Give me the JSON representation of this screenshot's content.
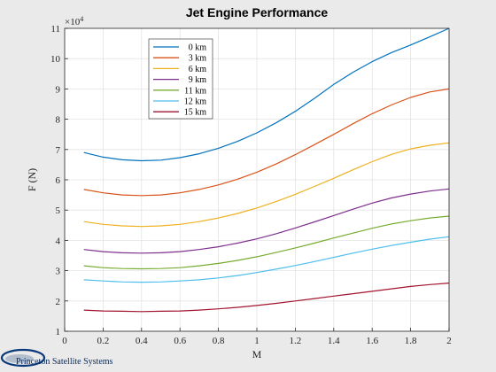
{
  "chart_data": {
    "type": "line",
    "title": "Jet Engine Performance",
    "xlabel": "M",
    "ylabel": "F (N)",
    "y_exponent_label": "×10",
    "y_exponent": "4",
    "xlim": [
      0,
      2
    ],
    "ylim": [
      1,
      11
    ],
    "x_ticks": [
      "0",
      "0.2",
      "0.4",
      "0.6",
      "0.8",
      "1",
      "1.2",
      "1.4",
      "1.6",
      "1.8",
      "2"
    ],
    "y_ticks": [
      "1",
      "2",
      "3",
      "4",
      "5",
      "6",
      "7",
      "8",
      "9",
      "10",
      "11"
    ],
    "grid": true,
    "legend_position": "top-left",
    "x": [
      0.1,
      0.2,
      0.3,
      0.4,
      0.5,
      0.6,
      0.7,
      0.8,
      0.9,
      1.0,
      1.1,
      1.2,
      1.3,
      1.4,
      1.5,
      1.6,
      1.7,
      1.8,
      1.9,
      2.0
    ],
    "series": [
      {
        "name": "0 km",
        "color": "#0072BD",
        "values": [
          6.9,
          6.75,
          6.66,
          6.63,
          6.65,
          6.73,
          6.86,
          7.04,
          7.27,
          7.55,
          7.88,
          8.26,
          8.69,
          9.15,
          9.55,
          9.9,
          10.2,
          10.45,
          10.72,
          11.0
        ]
      },
      {
        "name": "3 km",
        "color": "#D95319",
        "values": [
          5.68,
          5.57,
          5.5,
          5.48,
          5.5,
          5.57,
          5.68,
          5.83,
          6.02,
          6.25,
          6.52,
          6.83,
          7.16,
          7.5,
          7.85,
          8.18,
          8.47,
          8.72,
          8.9,
          9.0
        ]
      },
      {
        "name": "6 km",
        "color": "#EDB120",
        "values": [
          4.62,
          4.53,
          4.48,
          4.46,
          4.48,
          4.53,
          4.62,
          4.74,
          4.89,
          5.07,
          5.28,
          5.52,
          5.78,
          6.05,
          6.33,
          6.6,
          6.84,
          7.02,
          7.14,
          7.22
        ]
      },
      {
        "name": "9 km",
        "color": "#7E2F8E",
        "values": [
          3.7,
          3.63,
          3.59,
          3.58,
          3.59,
          3.63,
          3.7,
          3.79,
          3.91,
          4.05,
          4.22,
          4.41,
          4.61,
          4.82,
          5.03,
          5.23,
          5.4,
          5.53,
          5.63,
          5.7
        ]
      },
      {
        "name": "11 km",
        "color": "#77AC30",
        "values": [
          3.16,
          3.1,
          3.07,
          3.06,
          3.07,
          3.1,
          3.16,
          3.24,
          3.34,
          3.46,
          3.6,
          3.75,
          3.91,
          4.08,
          4.24,
          4.4,
          4.54,
          4.65,
          4.74,
          4.8
        ]
      },
      {
        "name": "12 km",
        "color": "#4DBEEE",
        "values": [
          2.7,
          2.66,
          2.63,
          2.62,
          2.63,
          2.66,
          2.7,
          2.76,
          2.84,
          2.94,
          3.05,
          3.17,
          3.3,
          3.44,
          3.58,
          3.71,
          3.83,
          3.94,
          4.04,
          4.12
        ]
      },
      {
        "name": "15 km",
        "color": "#A2142F",
        "values": [
          1.7,
          1.67,
          1.66,
          1.65,
          1.66,
          1.67,
          1.7,
          1.74,
          1.79,
          1.85,
          1.92,
          2.0,
          2.08,
          2.16,
          2.24,
          2.32,
          2.4,
          2.48,
          2.54,
          2.59
        ]
      }
    ]
  },
  "footer": {
    "brand_text": "Princeton Satellite Systems"
  }
}
